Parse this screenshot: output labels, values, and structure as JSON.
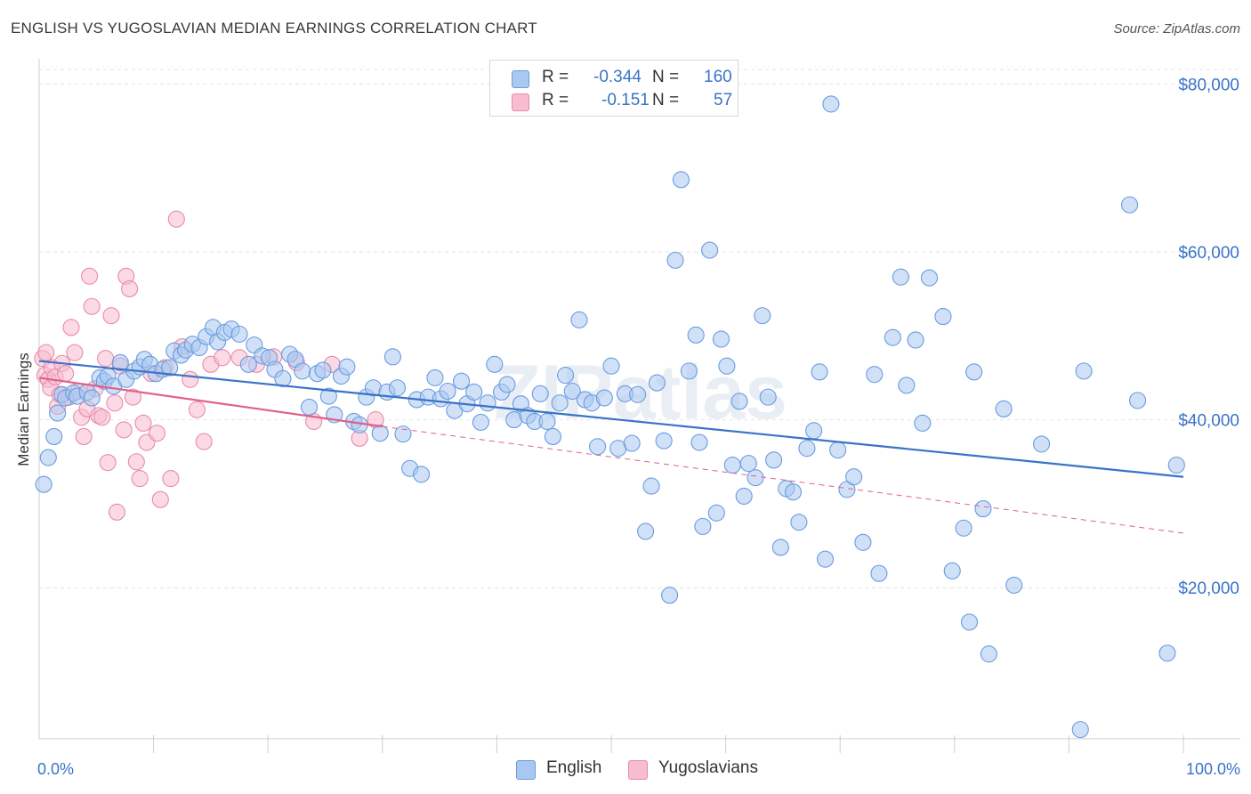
{
  "header": {
    "title": "ENGLISH VS YUGOSLAVIAN MEDIAN EARNINGS CORRELATION CHART",
    "source": "Source: ZipAtlas.com"
  },
  "legend": {
    "r_label": "R =",
    "n_label": "N =",
    "entries": [
      {
        "r": "-0.344",
        "n": "160",
        "color": "#a9c8f0",
        "stroke": "#6a9be0"
      },
      {
        "r": "-0.151",
        "n": "57",
        "color": "#f7bcd0",
        "stroke": "#e98aab"
      }
    ]
  },
  "watermark": "ZIPatlas",
  "chart_data": {
    "type": "scatter",
    "xlabel": "",
    "ylabel": "Median Earnings",
    "xlim": [
      0,
      100
    ],
    "ylim": [
      2000,
      83000
    ],
    "x_tick_labels": {
      "left": "0.0%",
      "right": "100.0%"
    },
    "y_ticks": [
      {
        "value": 20000,
        "label": "$20,000"
      },
      {
        "value": 40000,
        "label": "$40,000"
      },
      {
        "value": 60000,
        "label": "$60,000"
      },
      {
        "value": 80000,
        "label": "$80,000"
      }
    ],
    "grid": "horizontal dashed",
    "series": [
      {
        "name": "English",
        "color": "#a9c8f0",
        "stroke": "#6a9be0",
        "trend": {
          "x0": 0,
          "y0": 47000,
          "x1": 100,
          "y1": 33200,
          "color": "#3a73c8",
          "dash_from": null
        },
        "points": [
          [
            0.4,
            32300
          ],
          [
            0.8,
            35500
          ],
          [
            1.3,
            38000
          ],
          [
            1.6,
            40800
          ],
          [
            2.0,
            43000
          ],
          [
            2.3,
            42600
          ],
          [
            3.0,
            43200
          ],
          [
            3.3,
            42800
          ],
          [
            4.2,
            43300
          ],
          [
            4.6,
            42600
          ],
          [
            5.3,
            45000
          ],
          [
            5.7,
            44600
          ],
          [
            6.0,
            45200
          ],
          [
            6.5,
            44000
          ],
          [
            7.1,
            46800
          ],
          [
            7.6,
            44800
          ],
          [
            8.3,
            45800
          ],
          [
            8.8,
            46300
          ],
          [
            9.2,
            47200
          ],
          [
            9.7,
            46600
          ],
          [
            10.2,
            45500
          ],
          [
            10.8,
            46000
          ],
          [
            11.4,
            46200
          ],
          [
            11.8,
            48200
          ],
          [
            12.4,
            47700
          ],
          [
            12.8,
            48300
          ],
          [
            13.4,
            49000
          ],
          [
            14.0,
            48600
          ],
          [
            14.6,
            49900
          ],
          [
            15.2,
            51000
          ],
          [
            15.6,
            49300
          ],
          [
            16.2,
            50400
          ],
          [
            16.8,
            50800
          ],
          [
            17.5,
            50200
          ],
          [
            18.3,
            46600
          ],
          [
            18.8,
            48900
          ],
          [
            19.5,
            47600
          ],
          [
            20.1,
            47400
          ],
          [
            20.6,
            46000
          ],
          [
            21.3,
            44900
          ],
          [
            21.9,
            47800
          ],
          [
            22.4,
            47200
          ],
          [
            23.0,
            45800
          ],
          [
            23.6,
            41500
          ],
          [
            24.3,
            45500
          ],
          [
            24.8,
            45900
          ],
          [
            25.3,
            42800
          ],
          [
            25.8,
            40600
          ],
          [
            26.4,
            45200
          ],
          [
            26.9,
            46300
          ],
          [
            27.5,
            39800
          ],
          [
            28.0,
            39400
          ],
          [
            28.6,
            42700
          ],
          [
            29.2,
            43800
          ],
          [
            29.8,
            38400
          ],
          [
            30.4,
            43300
          ],
          [
            30.9,
            47500
          ],
          [
            31.3,
            43800
          ],
          [
            31.8,
            38300
          ],
          [
            32.4,
            34200
          ],
          [
            33.0,
            42400
          ],
          [
            33.4,
            33500
          ],
          [
            34.0,
            42700
          ],
          [
            34.6,
            45000
          ],
          [
            35.1,
            42500
          ],
          [
            35.7,
            43400
          ],
          [
            36.3,
            41100
          ],
          [
            36.9,
            44600
          ],
          [
            37.4,
            41900
          ],
          [
            38.0,
            43300
          ],
          [
            38.6,
            39700
          ],
          [
            39.2,
            42000
          ],
          [
            39.8,
            46600
          ],
          [
            40.4,
            43300
          ],
          [
            40.9,
            44200
          ],
          [
            41.5,
            40000
          ],
          [
            42.1,
            41900
          ],
          [
            42.7,
            40500
          ],
          [
            43.3,
            39800
          ],
          [
            43.8,
            43100
          ],
          [
            44.4,
            39800
          ],
          [
            44.9,
            38000
          ],
          [
            45.5,
            42000
          ],
          [
            46.0,
            45300
          ],
          [
            46.6,
            43400
          ],
          [
            47.2,
            51900
          ],
          [
            47.7,
            42400
          ],
          [
            48.3,
            42000
          ],
          [
            48.8,
            36800
          ],
          [
            49.4,
            42600
          ],
          [
            50.0,
            46400
          ],
          [
            50.6,
            36600
          ],
          [
            51.2,
            43100
          ],
          [
            51.8,
            37200
          ],
          [
            52.3,
            43000
          ],
          [
            53.0,
            26700
          ],
          [
            53.5,
            32100
          ],
          [
            54.0,
            44400
          ],
          [
            54.6,
            37500
          ],
          [
            55.1,
            19100
          ],
          [
            55.6,
            59000
          ],
          [
            56.1,
            68600
          ],
          [
            56.8,
            45800
          ],
          [
            57.4,
            50100
          ],
          [
            57.7,
            37300
          ],
          [
            58.0,
            27300
          ],
          [
            58.6,
            60200
          ],
          [
            59.2,
            28900
          ],
          [
            59.6,
            49600
          ],
          [
            60.1,
            46400
          ],
          [
            60.6,
            34600
          ],
          [
            61.2,
            42200
          ],
          [
            61.6,
            30900
          ],
          [
            62.0,
            34800
          ],
          [
            62.6,
            33100
          ],
          [
            63.2,
            52400
          ],
          [
            63.7,
            42700
          ],
          [
            64.2,
            35200
          ],
          [
            64.8,
            24800
          ],
          [
            65.3,
            31800
          ],
          [
            65.9,
            31400
          ],
          [
            66.4,
            27800
          ],
          [
            67.1,
            36600
          ],
          [
            67.7,
            38700
          ],
          [
            68.2,
            45700
          ],
          [
            68.7,
            23400
          ],
          [
            69.2,
            77600
          ],
          [
            69.8,
            36400
          ],
          [
            70.6,
            31700
          ],
          [
            71.2,
            33200
          ],
          [
            72.0,
            25400
          ],
          [
            73.0,
            45400
          ],
          [
            73.4,
            21700
          ],
          [
            74.6,
            49800
          ],
          [
            75.3,
            57000
          ],
          [
            75.8,
            44100
          ],
          [
            76.6,
            49500
          ],
          [
            77.2,
            39600
          ],
          [
            77.8,
            56900
          ],
          [
            79.0,
            52300
          ],
          [
            79.8,
            22000
          ],
          [
            80.8,
            27100
          ],
          [
            81.3,
            15900
          ],
          [
            81.7,
            45700
          ],
          [
            82.5,
            29400
          ],
          [
            83.0,
            12100
          ],
          [
            84.3,
            41300
          ],
          [
            85.2,
            20300
          ],
          [
            87.6,
            37100
          ],
          [
            91.0,
            3100
          ],
          [
            91.3,
            45800
          ],
          [
            95.3,
            65600
          ],
          [
            96.0,
            42300
          ],
          [
            98.6,
            12200
          ],
          [
            99.4,
            34600
          ]
        ]
      },
      {
        "name": "Yugoslavians",
        "color": "#f7bcd0",
        "stroke": "#e98aab",
        "trend": {
          "x0": 0,
          "y0": 45000,
          "x1": 30,
          "y1": 39200,
          "x2": 100,
          "y2": 26500,
          "color": "#e0608a"
        },
        "points": [
          [
            0.3,
            47300
          ],
          [
            0.5,
            45300
          ],
          [
            0.6,
            48000
          ],
          [
            0.8,
            44800
          ],
          [
            1.0,
            43800
          ],
          [
            1.1,
            46200
          ],
          [
            1.4,
            45100
          ],
          [
            1.6,
            41600
          ],
          [
            1.8,
            43000
          ],
          [
            2.0,
            46700
          ],
          [
            2.3,
            45500
          ],
          [
            2.6,
            42700
          ],
          [
            2.8,
            51000
          ],
          [
            3.1,
            48000
          ],
          [
            3.4,
            43400
          ],
          [
            3.7,
            40300
          ],
          [
            3.9,
            38000
          ],
          [
            4.2,
            41300
          ],
          [
            4.4,
            57100
          ],
          [
            4.6,
            53500
          ],
          [
            4.9,
            43700
          ],
          [
            5.2,
            40500
          ],
          [
            5.5,
            40300
          ],
          [
            5.8,
            47300
          ],
          [
            6.0,
            34900
          ],
          [
            6.3,
            52400
          ],
          [
            6.6,
            42000
          ],
          [
            6.8,
            29000
          ],
          [
            7.1,
            46400
          ],
          [
            7.4,
            38800
          ],
          [
            7.6,
            57100
          ],
          [
            7.9,
            55600
          ],
          [
            8.2,
            42700
          ],
          [
            8.5,
            35000
          ],
          [
            8.8,
            33000
          ],
          [
            9.1,
            39600
          ],
          [
            9.4,
            37300
          ],
          [
            9.8,
            45500
          ],
          [
            10.3,
            38400
          ],
          [
            10.6,
            30500
          ],
          [
            11.0,
            46200
          ],
          [
            11.5,
            33000
          ],
          [
            12.0,
            63900
          ],
          [
            12.5,
            48700
          ],
          [
            13.2,
            44800
          ],
          [
            13.8,
            41200
          ],
          [
            14.4,
            37400
          ],
          [
            15.0,
            46600
          ],
          [
            16.0,
            47400
          ],
          [
            17.5,
            47400
          ],
          [
            19.0,
            46600
          ],
          [
            20.5,
            47500
          ],
          [
            22.5,
            46800
          ],
          [
            24.0,
            39800
          ],
          [
            25.6,
            46600
          ],
          [
            28.0,
            37800
          ],
          [
            29.4,
            40000
          ]
        ]
      }
    ]
  },
  "bottom_legend": [
    {
      "name": "English",
      "color": "#a9c8f0",
      "stroke": "#6a9be0"
    },
    {
      "name": "Yugoslavians",
      "color": "#f7bcd0",
      "stroke": "#e98aab"
    }
  ]
}
